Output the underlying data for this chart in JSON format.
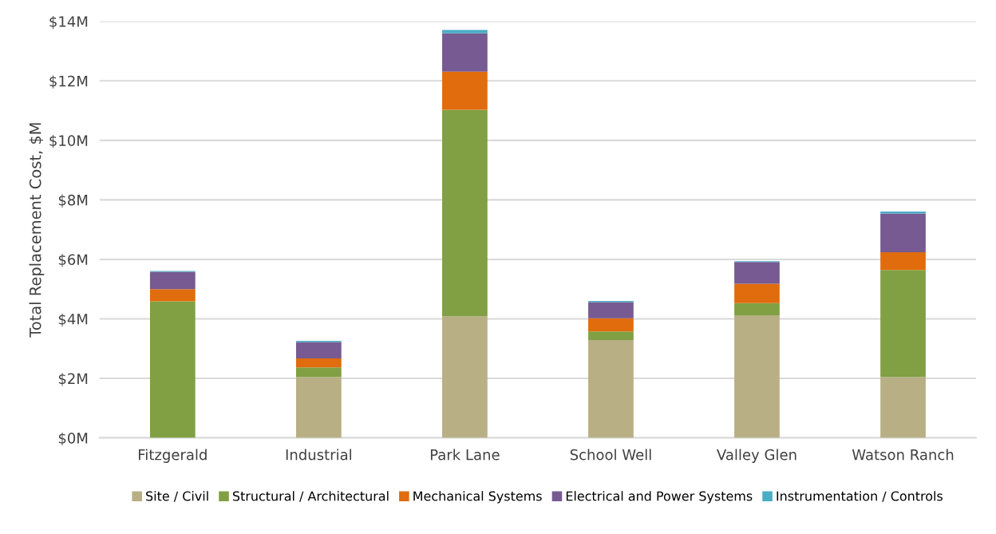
{
  "chart_data": {
    "type": "bar",
    "stacked": true,
    "ylabel": "Total Replacement Cost, $M",
    "categories": [
      "Fitzgerald",
      "Industrial",
      "Park Lane",
      "School Well",
      "Valley Glen",
      "Watson Ranch"
    ],
    "series": [
      {
        "name": "Site / Civil",
        "color": "#b8af84",
        "values": [
          0,
          2.05,
          4.09,
          3.29,
          4.12,
          2.05
        ]
      },
      {
        "name": "Structural / Architectural",
        "color": "#80a043",
        "values": [
          4.59,
          0.32,
          6.94,
          0.29,
          0.41,
          3.59
        ]
      },
      {
        "name": "Mechanical Systems",
        "color": "#e06c0e",
        "values": [
          0.41,
          0.3,
          1.28,
          0.44,
          0.65,
          0.6
        ]
      },
      {
        "name": "Electrical and Power Systems",
        "color": "#765a91",
        "values": [
          0.58,
          0.55,
          1.29,
          0.54,
          0.73,
          1.3
        ]
      },
      {
        "name": "Instrumentation / Controls",
        "color": "#4bacc6",
        "values": [
          0.03,
          0.04,
          0.11,
          0.04,
          0.03,
          0.07
        ]
      }
    ],
    "ylim": [
      0,
      14
    ],
    "yticks": [
      {
        "value": 0,
        "label": "$0M"
      },
      {
        "value": 2,
        "label": "$2M"
      },
      {
        "value": 4,
        "label": "$4M"
      },
      {
        "value": 6,
        "label": "$6M"
      },
      {
        "value": 8,
        "label": "$8M"
      },
      {
        "value": 10,
        "label": "$10M"
      },
      {
        "value": 12,
        "label": "$12M"
      },
      {
        "value": 14,
        "label": "$14M"
      }
    ],
    "grid": "y",
    "legend": "bottom"
  }
}
